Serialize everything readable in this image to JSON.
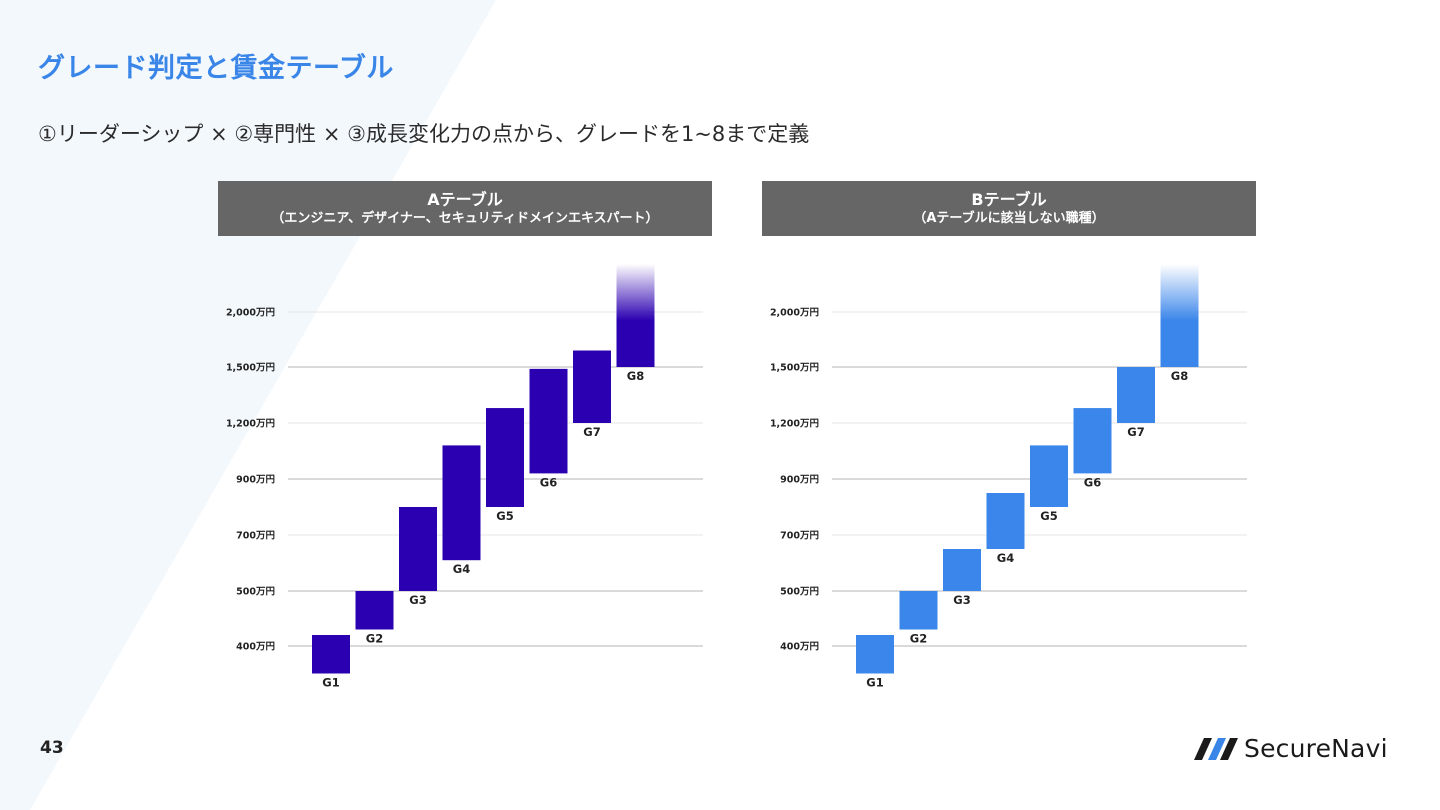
{
  "title": "グレード判定と賃金テーブル",
  "subtitle": "①リーダーシップ × ②専門性 × ③成長変化力の点から、グレードを1~8まで定義",
  "page_number": "43",
  "logo_text": "SecureNavi",
  "colors": {
    "accent": "#3a86e8",
    "header_bg": "#666666",
    "table_a": "#2b00b0",
    "table_b": "#3b86ea"
  },
  "chart_data": [
    {
      "type": "bar",
      "title": "Aテーブル",
      "subtitle": "（エンジニア、デザイナー、セキュリティドメインエキスパート）",
      "color": "#2b00b0",
      "y_ticks": [
        {
          "value": 400,
          "label": "400万円"
        },
        {
          "value": 500,
          "label": "500万円"
        },
        {
          "value": 700,
          "label": "700万円"
        },
        {
          "value": 900,
          "label": "900万円"
        },
        {
          "value": 1200,
          "label": "1,200万円"
        },
        {
          "value": 1500,
          "label": "1,500万円"
        },
        {
          "value": 2000,
          "label": "2,000万円"
        }
      ],
      "grid": true,
      "categories": [
        "G1",
        "G2",
        "G3",
        "G4",
        "G5",
        "G6",
        "G7",
        "G8"
      ],
      "ranges": [
        {
          "low": 350,
          "high": 420
        },
        {
          "low": 430,
          "high": 500
        },
        {
          "low": 500,
          "high": 800
        },
        {
          "low": 610,
          "high": 1080
        },
        {
          "low": 800,
          "high": 1280
        },
        {
          "low": 930,
          "high": 1490
        },
        {
          "low": 1200,
          "high": 1650
        },
        {
          "low": 1500,
          "high": 2000,
          "open_top": true
        }
      ]
    },
    {
      "type": "bar",
      "title": "Bテーブル",
      "subtitle": "（Aテーブルに該当しない職種）",
      "color": "#3b86ea",
      "y_ticks": [
        {
          "value": 400,
          "label": "400万円"
        },
        {
          "value": 500,
          "label": "500万円"
        },
        {
          "value": 700,
          "label": "700万円"
        },
        {
          "value": 900,
          "label": "900万円"
        },
        {
          "value": 1200,
          "label": "1,200万円"
        },
        {
          "value": 1500,
          "label": "1,500万円"
        },
        {
          "value": 2000,
          "label": "2,000万円"
        }
      ],
      "grid": true,
      "categories": [
        "G1",
        "G2",
        "G3",
        "G4",
        "G5",
        "G6",
        "G7",
        "G8"
      ],
      "ranges": [
        {
          "low": 350,
          "high": 420
        },
        {
          "low": 430,
          "high": 500
        },
        {
          "low": 500,
          "high": 650
        },
        {
          "low": 650,
          "high": 850
        },
        {
          "low": 800,
          "high": 1080
        },
        {
          "low": 930,
          "high": 1280
        },
        {
          "low": 1200,
          "high": 1500
        },
        {
          "low": 1500,
          "high": 2000,
          "open_top": true
        }
      ]
    }
  ]
}
